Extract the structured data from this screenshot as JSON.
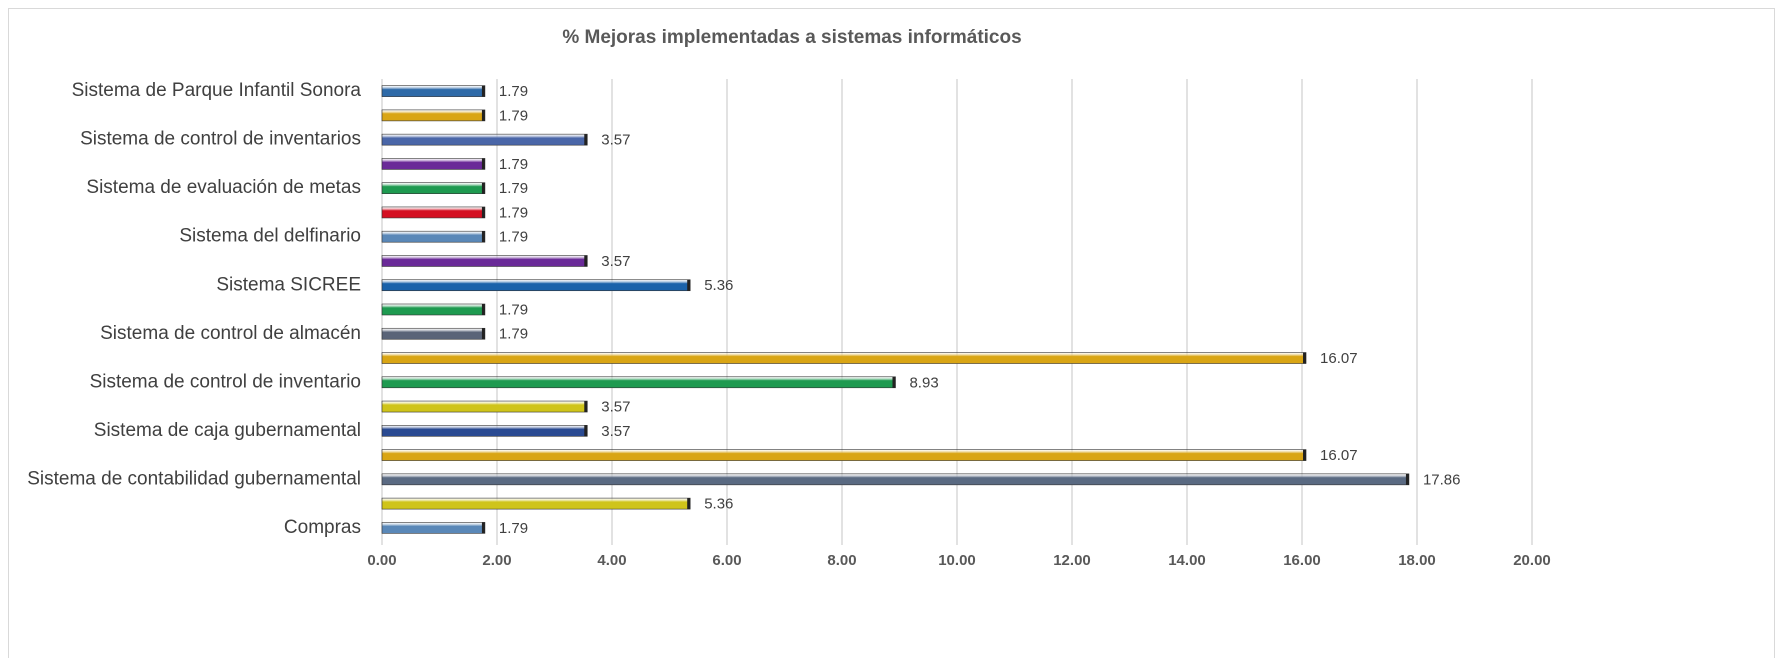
{
  "chart_data": {
    "type": "barh",
    "title": "% Mejoras implementadas a sistemas informáticos",
    "categories": [
      "Sistema de Parque Infantil Sonora",
      null,
      "Sistema de control de inventarios",
      null,
      "Sistema de evaluación de metas",
      null,
      "Sistema del delfinario",
      null,
      "Sistema SICREE",
      null,
      "Sistema de control de almacén",
      null,
      "Sistema de control de inventario",
      null,
      "Sistema de caja gubernamental",
      null,
      "Sistema de contabilidad gubernamental",
      null,
      "Compras"
    ],
    "values": [
      1.79,
      1.79,
      3.57,
      1.79,
      1.79,
      1.79,
      1.79,
      3.57,
      5.36,
      1.79,
      1.79,
      16.07,
      8.93,
      3.57,
      3.57,
      16.07,
      17.86,
      5.36,
      1.79
    ],
    "colors": [
      "#2e6aa8",
      "#d9a514",
      "#4a66a8",
      "#6a2a98",
      "#1e9a50",
      "#d41022",
      "#5a88b8",
      "#6a2a98",
      "#1a62aa",
      "#1e9a50",
      "#5a6478",
      "#d9a514",
      "#1e9a50",
      "#cfc41a",
      "#2a4a92",
      "#d9a514",
      "#5a6a82",
      "#cfc41a",
      "#5a88b8"
    ],
    "xlim": [
      0,
      20
    ],
    "xticks": [
      {
        "value": 0,
        "label": "0.00"
      },
      {
        "value": 2,
        "label": "2.00"
      },
      {
        "value": 4,
        "label": "4.00"
      },
      {
        "value": 6,
        "label": "6.00"
      },
      {
        "value": 8,
        "label": "8.00"
      },
      {
        "value": 10,
        "label": "10.00"
      },
      {
        "value": 12,
        "label": "12.00"
      },
      {
        "value": 14,
        "label": "14.00"
      },
      {
        "value": 16,
        "label": "16.00"
      },
      {
        "value": 18,
        "label": "18.00"
      },
      {
        "value": 20,
        "label": "20.00"
      }
    ],
    "grid": true
  }
}
